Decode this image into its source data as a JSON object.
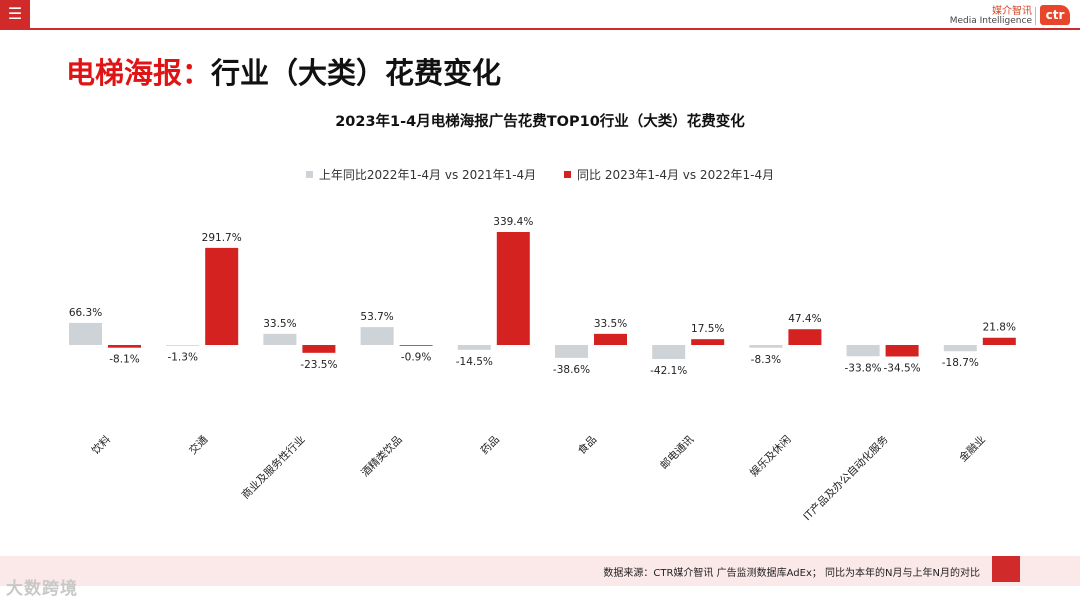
{
  "header": {
    "menu_icon": "hamburger-icon",
    "brand_cn": "媒介智讯",
    "brand_en": "Media Intelligence",
    "brand_logo": "ctr"
  },
  "page": {
    "title_red": "电梯海报：",
    "title_black": "行业（大类）花费变化"
  },
  "chart_data": {
    "type": "bar",
    "title": "2023年1-4月电梯海报广告花费TOP10行业（大类）花费变化",
    "categories": [
      "饮料",
      "交通",
      "商业及服务性行业",
      "酒精类饮品",
      "药品",
      "食品",
      "邮电通讯",
      "娱乐及休闲",
      "IT产品及办公自动化服务",
      "金融业"
    ],
    "series": [
      {
        "name": "上年同比2022年1-4月 vs 2021年1-4月",
        "color": "#cdd3d6",
        "values": [
          66.3,
          -1.3,
          33.5,
          53.7,
          -14.5,
          -38.6,
          -42.1,
          -8.3,
          -33.8,
          -18.7
        ],
        "labels": [
          "66.3%",
          "-1.3%",
          "33.5%",
          "53.7%",
          "-14.5%",
          "-38.6%",
          "-42.1%",
          "-8.3%",
          "-33.8%",
          "-18.7%"
        ]
      },
      {
        "name": "同比 2023年1-4月 vs 2022年1-4月",
        "color": "#d42220",
        "values": [
          -8.1,
          291.7,
          -23.5,
          -0.9,
          339.4,
          33.5,
          17.5,
          47.4,
          -34.5,
          21.8
        ],
        "labels": [
          "-8.1%",
          "291.7%",
          "-23.5%",
          "-0.9%",
          "339.4%",
          "33.5%",
          "17.5%",
          "47.4%",
          "-34.5%",
          "21.8%"
        ]
      }
    ],
    "xlabel": "",
    "ylabel": "",
    "ylim": [
      -60,
      350
    ],
    "legend": "top-center",
    "grid": false
  },
  "footer": {
    "source": "数据来源：CTR媒介智讯 广告监测数据库AdEx；   同比为本年的N月与上年N月的对比",
    "watermark": "大数跨境"
  }
}
